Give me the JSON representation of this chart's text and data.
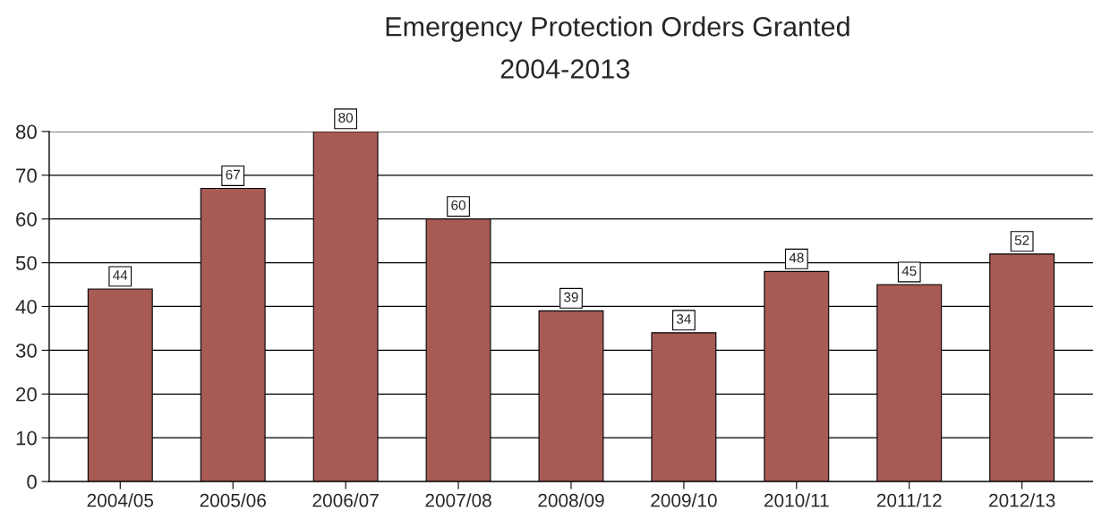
{
  "chart_data": {
    "type": "bar",
    "title": "Emergency Protection Orders Granted",
    "subtitle": "2004-2013",
    "categories": [
      "2004/05",
      "2005/06",
      "2006/07",
      "2007/08",
      "2008/09",
      "2009/10",
      "2010/11",
      "2011/12",
      "2012/13"
    ],
    "values": [
      44,
      67,
      80,
      60,
      39,
      34,
      48,
      45,
      52
    ],
    "color": "#a85a55",
    "ylim": [
      0,
      80
    ],
    "yticks": [
      0,
      10,
      20,
      30,
      40,
      50,
      60,
      70,
      80
    ],
    "grid": "y",
    "data_labels": true,
    "legend": false
  }
}
